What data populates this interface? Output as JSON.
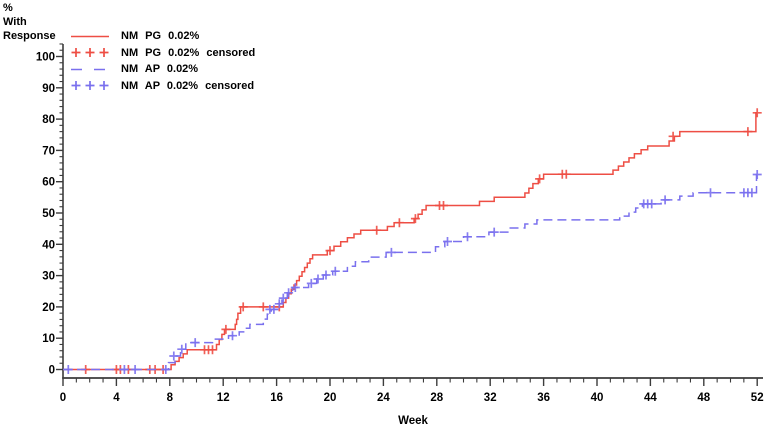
{
  "y_axis": {
    "label_lines": [
      "%",
      "With",
      "Response"
    ],
    "ticks": [
      0,
      10,
      20,
      30,
      40,
      50,
      60,
      70,
      80,
      90,
      100
    ],
    "minor_step": 2,
    "range": [
      0,
      100
    ]
  },
  "x_axis": {
    "label": "Week",
    "ticks": [
      0,
      4,
      8,
      12,
      16,
      20,
      24,
      28,
      32,
      36,
      40,
      44,
      48,
      52
    ],
    "minor_step": 1,
    "range": [
      0,
      52
    ]
  },
  "legend": {
    "items": [
      {
        "label": "NM PG 0.02%",
        "symbol": "solid-line",
        "color": "#ee4e44"
      },
      {
        "label": "NM PG 0.02% censored",
        "symbol": "plus-marks",
        "color": "#ee4e44"
      },
      {
        "label": "NM AP 0.02%",
        "symbol": "dashed-line",
        "color": "#7a70ee"
      },
      {
        "label": "NM AP 0.02% censored",
        "symbol": "plus-marks",
        "color": "#7a70ee"
      }
    ]
  },
  "colors": {
    "red_series": "#ee4e44",
    "blue_series": "#7a70ee",
    "axis": "#3c3c3c",
    "text": "#000000"
  },
  "chart_data": {
    "type": "line",
    "subtype": "kaplan-meier-step-cumulative-response",
    "title": "",
    "xlabel": "Week",
    "ylabel": "% With Response",
    "xlim": [
      0,
      52
    ],
    "ylim": [
      0,
      100
    ],
    "grid": false,
    "legend_position": "top-left-inside",
    "series": [
      {
        "name": "NM PG 0.02%",
        "style": "solid",
        "color": "#ee4e44",
        "steps": [
          [
            0,
            0
          ],
          [
            8.1,
            1.5
          ],
          [
            8.4,
            2.6
          ],
          [
            8.7,
            3.8
          ],
          [
            9.0,
            5.0
          ],
          [
            9.3,
            6.3
          ],
          [
            11.5,
            8.0
          ],
          [
            11.7,
            9.6
          ],
          [
            11.9,
            11.2
          ],
          [
            12.1,
            12.8
          ],
          [
            12.9,
            14.4
          ],
          [
            13.0,
            16.0
          ],
          [
            13.1,
            18.0
          ],
          [
            13.3,
            20.0
          ],
          [
            16.5,
            21.4
          ],
          [
            16.7,
            22.8
          ],
          [
            16.9,
            24.2
          ],
          [
            17.1,
            25.6
          ],
          [
            17.3,
            27.0
          ],
          [
            17.5,
            28.4
          ],
          [
            17.7,
            29.8
          ],
          [
            17.9,
            31.2
          ],
          [
            18.1,
            32.6
          ],
          [
            18.3,
            34.0
          ],
          [
            18.5,
            35.4
          ],
          [
            18.7,
            36.6
          ],
          [
            19.8,
            38.0
          ],
          [
            20.3,
            39.4
          ],
          [
            20.8,
            40.8
          ],
          [
            21.3,
            42.1
          ],
          [
            21.8,
            43.3
          ],
          [
            22.3,
            44.5
          ],
          [
            24.3,
            45.7
          ],
          [
            24.8,
            46.9
          ],
          [
            26.3,
            48.2
          ],
          [
            26.6,
            49.6
          ],
          [
            26.9,
            51.0
          ],
          [
            27.2,
            52.4
          ],
          [
            31.2,
            53.7
          ],
          [
            32.3,
            55.0
          ],
          [
            34.6,
            56.4
          ],
          [
            34.9,
            57.9
          ],
          [
            35.2,
            59.4
          ],
          [
            35.6,
            60.9
          ],
          [
            36.0,
            62.4
          ],
          [
            41.2,
            63.7
          ],
          [
            41.6,
            65.0
          ],
          [
            42.0,
            66.3
          ],
          [
            42.4,
            67.6
          ],
          [
            42.8,
            68.9
          ],
          [
            43.3,
            70.2
          ],
          [
            43.8,
            71.4
          ],
          [
            45.4,
            73.0
          ],
          [
            45.8,
            74.5
          ],
          [
            46.2,
            76.0
          ],
          [
            51.9,
            82.0
          ]
        ],
        "censored": [
          [
            1.7,
            0
          ],
          [
            4.0,
            0
          ],
          [
            4.3,
            0
          ],
          [
            4.9,
            0
          ],
          [
            6.5,
            0
          ],
          [
            6.9,
            0
          ],
          [
            7.5,
            0
          ],
          [
            10.6,
            6.3
          ],
          [
            10.9,
            6.3
          ],
          [
            11.2,
            6.3
          ],
          [
            12.2,
            12.8
          ],
          [
            13.5,
            20.0
          ],
          [
            15.0,
            20.0
          ],
          [
            16.2,
            20.0
          ],
          [
            20.0,
            38.0
          ],
          [
            23.5,
            44.5
          ],
          [
            25.2,
            46.9
          ],
          [
            26.4,
            48.2
          ],
          [
            28.2,
            52.4
          ],
          [
            28.5,
            52.4
          ],
          [
            35.7,
            60.9
          ],
          [
            37.4,
            62.4
          ],
          [
            37.7,
            62.4
          ],
          [
            45.7,
            74.5
          ],
          [
            51.3,
            76.0
          ],
          [
            52.0,
            82.0
          ]
        ]
      },
      {
        "name": "NM AP 0.02%",
        "style": "dashed",
        "color": "#7a70ee",
        "steps": [
          [
            0,
            0
          ],
          [
            7.9,
            2.2
          ],
          [
            8.4,
            4.3
          ],
          [
            8.8,
            6.5
          ],
          [
            9.2,
            8.6
          ],
          [
            11.2,
            9.7
          ],
          [
            12.4,
            10.8
          ],
          [
            13.2,
            12.0
          ],
          [
            13.6,
            13.2
          ],
          [
            14.0,
            14.4
          ],
          [
            15.0,
            16.1
          ],
          [
            15.3,
            17.7
          ],
          [
            15.6,
            19.2
          ],
          [
            16.1,
            21.0
          ],
          [
            16.4,
            22.8
          ],
          [
            16.8,
            24.5
          ],
          [
            17.2,
            26.2
          ],
          [
            18.4,
            27.5
          ],
          [
            19.0,
            28.9
          ],
          [
            19.5,
            30.2
          ],
          [
            20.2,
            31.4
          ],
          [
            21.3,
            33.0
          ],
          [
            21.9,
            34.4
          ],
          [
            22.9,
            35.9
          ],
          [
            24.2,
            37.4
          ],
          [
            27.9,
            39.2
          ],
          [
            28.6,
            40.9
          ],
          [
            30.0,
            42.4
          ],
          [
            31.9,
            43.9
          ],
          [
            33.4,
            45.2
          ],
          [
            34.6,
            46.5
          ],
          [
            35.5,
            47.8
          ],
          [
            41.7,
            49.0
          ],
          [
            42.4,
            50.3
          ],
          [
            42.9,
            51.6
          ],
          [
            43.4,
            52.9
          ],
          [
            44.8,
            54.2
          ],
          [
            46.2,
            55.4
          ],
          [
            47.2,
            56.5
          ],
          [
            51.95,
            62.3
          ]
        ],
        "censored": [
          [
            0.4,
            0
          ],
          [
            4.6,
            0
          ],
          [
            5.4,
            0
          ],
          [
            7.7,
            0
          ],
          [
            8.3,
            4.3
          ],
          [
            8.9,
            6.5
          ],
          [
            9.9,
            8.6
          ],
          [
            12.7,
            10.8
          ],
          [
            15.5,
            19.2
          ],
          [
            15.8,
            19.2
          ],
          [
            16.2,
            21.0
          ],
          [
            16.5,
            22.8
          ],
          [
            16.9,
            24.5
          ],
          [
            17.4,
            26.2
          ],
          [
            18.6,
            27.5
          ],
          [
            19.1,
            28.9
          ],
          [
            19.7,
            30.2
          ],
          [
            20.4,
            31.4
          ],
          [
            24.6,
            37.4
          ],
          [
            28.8,
            40.9
          ],
          [
            30.3,
            42.4
          ],
          [
            32.3,
            43.9
          ],
          [
            43.5,
            52.9
          ],
          [
            43.8,
            52.9
          ],
          [
            44.1,
            52.9
          ],
          [
            45.1,
            54.2
          ],
          [
            48.5,
            56.5
          ],
          [
            51.0,
            56.5
          ],
          [
            51.3,
            56.5
          ],
          [
            51.6,
            56.5
          ],
          [
            52.0,
            62.3
          ]
        ]
      }
    ]
  }
}
